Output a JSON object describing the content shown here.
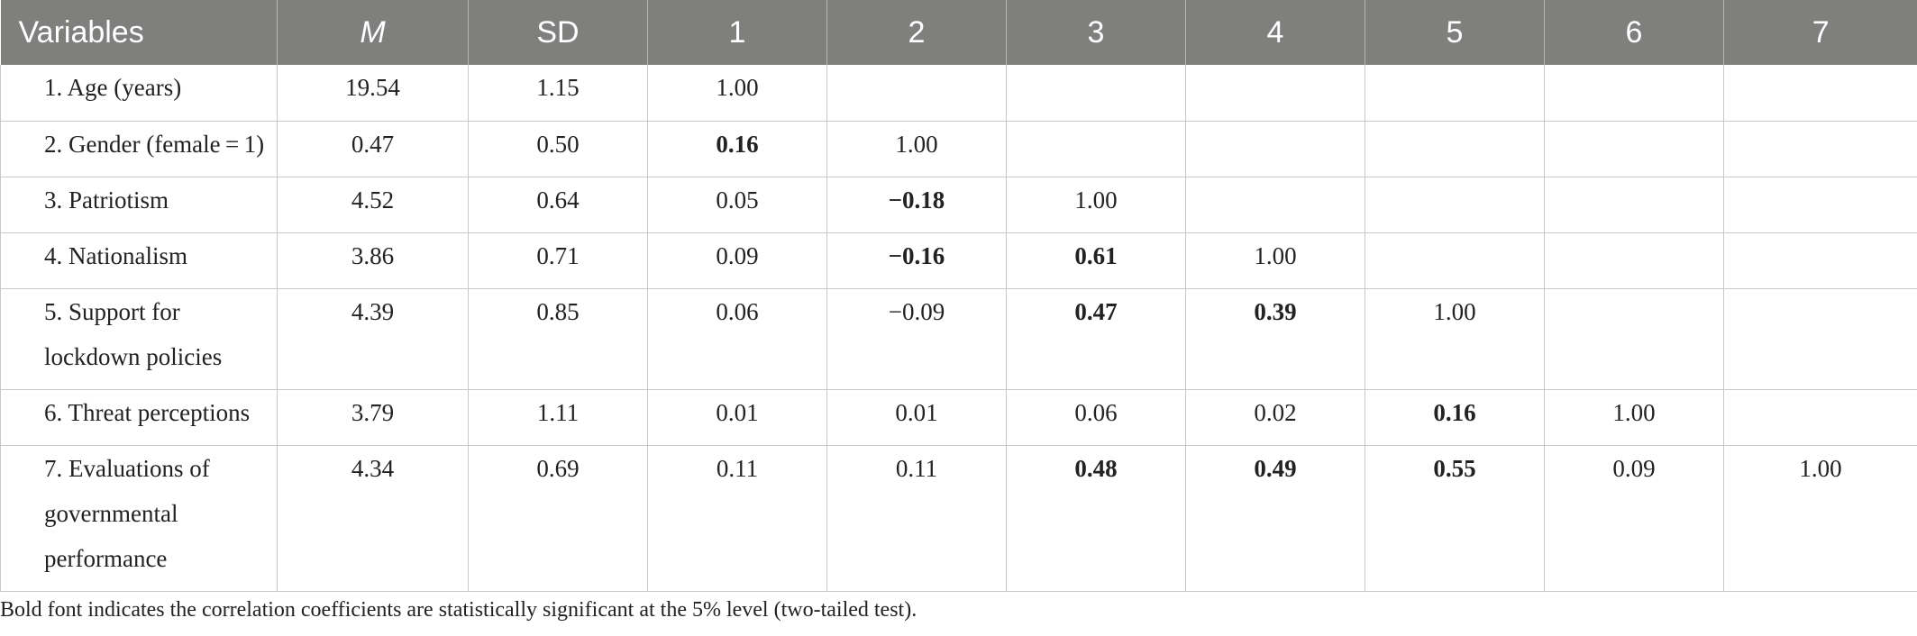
{
  "table": {
    "headers": [
      "Variables",
      "M",
      "SD",
      "1",
      "2",
      "3",
      "4",
      "5",
      "6",
      "7"
    ],
    "rows": [
      {
        "variable": "1. Age (years)",
        "m": "19.54",
        "sd": "1.15",
        "c1": "1.00",
        "c2": "",
        "c3": "",
        "c4": "",
        "c5": "",
        "c6": "",
        "c7": ""
      },
      {
        "variable": "2. Gender (female = 1)",
        "m": "0.47",
        "sd": "0.50",
        "c1": "0.16",
        "c2": "1.00",
        "c3": "",
        "c4": "",
        "c5": "",
        "c6": "",
        "c7": ""
      },
      {
        "variable": "3. Patriotism",
        "m": "4.52",
        "sd": "0.64",
        "c1": "0.05",
        "c2": "−0.18",
        "c3": "1.00",
        "c4": "",
        "c5": "",
        "c6": "",
        "c7": ""
      },
      {
        "variable": "4. Nationalism",
        "m": "3.86",
        "sd": "0.71",
        "c1": "0.09",
        "c2": "−0.16",
        "c3": "0.61",
        "c4": "1.00",
        "c5": "",
        "c6": "",
        "c7": ""
      },
      {
        "variable_line1": "5. Support for",
        "variable_line2": "lockdown policies",
        "m": "4.39",
        "sd": "0.85",
        "c1": "0.06",
        "c2": "−0.09",
        "c3": "0.47",
        "c4": "0.39",
        "c5": "1.00",
        "c6": "",
        "c7": ""
      },
      {
        "variable": "6. Threat perceptions",
        "m": "3.79",
        "sd": "1.11",
        "c1": "0.01",
        "c2": "0.01",
        "c3": "0.06",
        "c4": "0.02",
        "c5": "0.16",
        "c6": "1.00",
        "c7": ""
      },
      {
        "variable_line1": "7. Evaluations of",
        "variable_line2": "governmental",
        "variable_line3": "performance",
        "m": "4.34",
        "sd": "0.69",
        "c1": "0.11",
        "c2": "0.11",
        "c3": "0.48",
        "c4": "0.49",
        "c5": "0.55",
        "c6": "0.09",
        "c7": "1.00"
      }
    ]
  },
  "note": "Bold font indicates the correlation coefficients are statistically significant at the 5% level (two-tailed test)."
}
